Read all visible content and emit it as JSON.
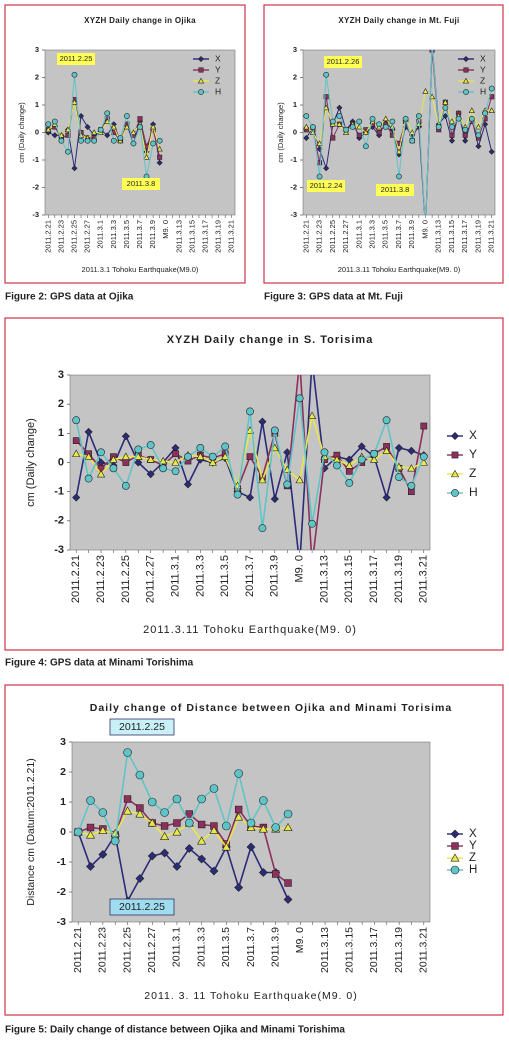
{
  "chart_data": [
    {
      "type": "line",
      "title": "XYZH  Daily change  in  Ojika",
      "caption": "Figure 2: GPS data at Ojika",
      "x_label": "2011.3.1  Tohoku Earthquake(M9.0)",
      "y_label": "cm  (Daily change)",
      "categories": [
        "2011.2.21",
        null,
        "2011.2.23",
        null,
        "2011.2.25",
        null,
        "2011.2.27",
        null,
        "2011.3.1",
        null,
        "2011.3.3",
        null,
        "2011.3.5",
        null,
        "2011.3.7",
        null,
        "2011.3.9",
        null,
        "M9. 0",
        null,
        "2011.3.13",
        null,
        "2011.3.15",
        null,
        "2011.3.17",
        null,
        "2011.3.19",
        null,
        "2011.3.21"
      ],
      "ylim": [
        -3,
        3
      ],
      "yticks": [
        -3,
        -2,
        -1,
        0,
        1,
        2,
        3
      ],
      "legend": "upper right",
      "annotations": [
        "2011.2.25",
        "2011.3.8"
      ],
      "series": [
        {
          "name": "X",
          "color": "#2b2b7a",
          "marker": "diamond",
          "values": [
            0,
            -0.1,
            -0.1,
            0.1,
            -1.3,
            0.6,
            0.2,
            -0.1,
            0.1,
            -0.1,
            0.3,
            -0.3,
            0.3,
            -0.4,
            0.4,
            -0.7,
            0.3,
            -1.1,
            null,
            null,
            null,
            null,
            null,
            null,
            null,
            null,
            null,
            null,
            null
          ]
        },
        {
          "name": "Y",
          "color": "#8e2f5e",
          "marker": "square",
          "values": [
            0.1,
            0.2,
            -0.2,
            -0.1,
            1.2,
            0,
            -0.2,
            -0.2,
            0.1,
            0.5,
            0,
            -0.3,
            0.3,
            -0.1,
            0.5,
            -0.5,
            0.1,
            -0.9,
            null,
            null,
            null,
            null,
            null,
            null,
            null,
            null,
            null,
            null,
            null
          ]
        },
        {
          "name": "Z",
          "color": "#e8e84a",
          "marker": "triangle",
          "values": [
            0.1,
            0.3,
            -0.1,
            0.1,
            1.1,
            -0.1,
            -0.2,
            0,
            0,
            0.4,
            0.2,
            -0.3,
            0.2,
            0,
            0.3,
            -0.9,
            0.2,
            -0.6,
            null,
            null,
            null,
            null,
            null,
            null,
            null,
            null,
            null,
            null,
            null
          ]
        },
        {
          "name": "H",
          "color": "#5fc4c8",
          "marker": "circle",
          "values": [
            0.3,
            0.4,
            -0.3,
            -0.7,
            2.1,
            -0.3,
            -0.3,
            -0.3,
            0.1,
            0.7,
            -0.3,
            -0.2,
            0.6,
            -0.4,
            0.2,
            -1.6,
            -0.4,
            -0.3,
            null,
            null,
            null,
            null,
            null,
            null,
            null,
            null,
            null,
            null,
            null
          ]
        }
      ]
    },
    {
      "type": "line",
      "title": "XYZH  Daily change  in  Mt. Fuji",
      "caption": "Figure 3: GPS data at Mt. Fuji",
      "x_label": "2011.3.11 Tohoku  Earthquake(M9. 0)",
      "y_label": "cm  (Daily change)",
      "categories": [
        "2011.2.21",
        null,
        "2011.2.23",
        null,
        "2011.2.25",
        null,
        "2011.2.27",
        null,
        "2011.3.1",
        null,
        "2011.3.3",
        null,
        "2011.3.5",
        null,
        "2011.3.7",
        null,
        "2011.3.9",
        null,
        "M9. 0",
        null,
        "2011.3.13",
        null,
        "2011.3.15",
        null,
        "2011.3.17",
        null,
        "2011.3.19",
        null,
        "2011.3.21"
      ],
      "ylim": [
        -3,
        3
      ],
      "yticks": [
        -3,
        -2,
        -1,
        0,
        1,
        2,
        3
      ],
      "legend": "upper right",
      "annotations": [
        "2011.2.26",
        "2011.2.24",
        "2011.3.8"
      ],
      "series": [
        {
          "name": "X",
          "color": "#2b2b7a",
          "marker": "diamond",
          "values": [
            -0.2,
            0.2,
            -0.6,
            -1.3,
            0.3,
            0.9,
            0.1,
            0.4,
            -0.2,
            0,
            0.2,
            -0.1,
            0.4,
            0.1,
            -0.8,
            0.2,
            -0.1,
            0.2,
            -3.5,
            3.2,
            0.3,
            0.6,
            -0.3,
            0.7,
            -0.3,
            0.5,
            -0.5,
            0.3,
            -0.7
          ]
        },
        {
          "name": "Y",
          "color": "#8e2f5e",
          "marker": "square",
          "values": [
            0.1,
            0.1,
            -1.1,
            1.3,
            -0.2,
            0.3,
            0.1,
            0.3,
            -0.1,
            0.1,
            0.3,
            0,
            0.3,
            -0.1,
            -0.4,
            0.4,
            -0.3,
            0.4,
            -3.5,
            3,
            0.1,
            1.1,
            -0.1,
            0.7,
            -0.1,
            0.4,
            -0.2,
            0.5,
            1.3
          ]
        },
        {
          "name": "Z",
          "color": "#e8e84a",
          "marker": "triangle",
          "values": [
            0.2,
            0,
            -0.4,
            0.9,
            0.3,
            0.3,
            0,
            0.3,
            0.2,
            0,
            0.4,
            0.2,
            0.5,
            0.2,
            -0.7,
            0.5,
            0,
            0.3,
            1.5,
            1.3,
            0.3,
            1.1,
            0.4,
            0.6,
            0.2,
            0.8,
            0.2,
            0.8,
            0.8
          ]
        },
        {
          "name": "H",
          "color": "#5fc4c8",
          "marker": "circle",
          "values": [
            0.6,
            0.2,
            -1.6,
            2.1,
            0.4,
            0.6,
            0.1,
            0.2,
            0.4,
            -0.5,
            0.5,
            0.3,
            0.2,
            0.4,
            -1.6,
            0.5,
            -0.3,
            0.6,
            -3.5,
            3.2,
            0.2,
            0.9,
            0.2,
            0.5,
            0.1,
            0.5,
            -0.1,
            0.7,
            1.6
          ]
        }
      ]
    },
    {
      "type": "line",
      "title": "XYZH  Daily change  in  S. Torisima",
      "caption": "Figure 4: GPS data at Minami Torishima",
      "x_label": "2011.3.11 Tohoku  Earthquake(M9. 0)",
      "y_label": "cm  (Daily  change)",
      "categories": [
        "2011.2.21",
        null,
        "2011.2.23",
        null,
        "2011.2.25",
        null,
        "2011.2.27",
        null,
        "2011.3.1",
        null,
        "2011.3.3",
        null,
        "2011.3.5",
        null,
        "2011.3.7",
        null,
        "2011.3.9",
        null,
        "M9. 0",
        null,
        "2011.3.13",
        null,
        "2011.3.15",
        null,
        "2011.3.17",
        null,
        "2011.3.19",
        null,
        "2011.3.21"
      ],
      "ylim": [
        -3,
        3
      ],
      "yticks": [
        -3,
        -2,
        -1,
        0,
        1,
        2,
        3
      ],
      "legend": "right",
      "annotations": [],
      "series": [
        {
          "name": "X",
          "color": "#2b2b7a",
          "marker": "diamond",
          "values": [
            -1.2,
            1.05,
            0,
            -0.1,
            0.9,
            0,
            -0.4,
            0,
            0.5,
            -0.75,
            0.1,
            0,
            0.15,
            -1,
            -1.2,
            1.4,
            -1.25,
            0.35,
            -3.5,
            3.5,
            -0.2,
            0.2,
            0.1,
            0.55,
            0.2,
            -1.2,
            0.5,
            0.4,
            0.25
          ]
        },
        {
          "name": "Y",
          "color": "#8e2f5e",
          "marker": "square",
          "values": [
            0.75,
            0.3,
            -0.2,
            0.2,
            0,
            0.25,
            0.1,
            -0.1,
            0.3,
            0.05,
            0.25,
            0.15,
            0.3,
            -0.9,
            0.2,
            -0.5,
            1,
            -0.8,
            3.5,
            -3.5,
            0.1,
            0.25,
            -0.3,
            0,
            0.3,
            0.55,
            -0.2,
            -1,
            1.25
          ]
        },
        {
          "name": "Z",
          "color": "#e8e84a",
          "marker": "triangle",
          "values": [
            0.3,
            0.2,
            -0.4,
            0.1,
            0.2,
            0.2,
            0.1,
            0.05,
            0,
            0.25,
            0.2,
            0,
            0.2,
            -0.8,
            1.1,
            -0.6,
            0.5,
            -0.25,
            -0.6,
            1.6,
            0.2,
            0.1,
            -0.1,
            0.2,
            0.1,
            0.4,
            -0.15,
            -0.2,
            0
          ]
        },
        {
          "name": "H",
          "color": "#5fc4c8",
          "marker": "circle",
          "values": [
            1.45,
            -0.55,
            0.35,
            -0.2,
            -0.8,
            0.45,
            0.6,
            -0.2,
            -0.3,
            0.2,
            0.5,
            0.2,
            0.55,
            -1.1,
            1.75,
            -2.25,
            1.1,
            -0.75,
            2.2,
            -2.1,
            0.35,
            -0.1,
            -0.7,
            0.1,
            0.3,
            1.45,
            -0.5,
            -0.8,
            0.2
          ]
        }
      ]
    },
    {
      "type": "line",
      "title": "Daily change of Distance between Ojika and Minami Torisima",
      "caption": "Figure 5: Daily change of distance between Ojika and Minami Torishima",
      "x_label": "2011. 3. 11  Tohoku  Earthquake(M9. 0)",
      "y_label": "Distance  cm  (Datum:2011.2.21)",
      "categories": [
        "2011.2.21",
        null,
        "2011.2.23",
        null,
        "2011.2.25",
        null,
        "2011.2.27",
        null,
        "2011.3.1",
        null,
        "2011.3.3",
        null,
        "2011.3.5",
        null,
        "2011.3.7",
        null,
        "2011.3.9",
        null,
        "M9. 0",
        null,
        "2011.3.13",
        null,
        "2011.3.15",
        null,
        "2011.3.17",
        null,
        "2011.3.19",
        null,
        "2011.3.21"
      ],
      "ylim": [
        -3,
        3
      ],
      "yticks": [
        -3,
        -2,
        -1,
        0,
        1,
        2,
        3
      ],
      "legend": "right",
      "annotations": [
        "2011.2.25",
        "2011.2.25"
      ],
      "series": [
        {
          "name": "X",
          "color": "#2b2b7a",
          "marker": "diamond",
          "values": [
            0,
            -1.15,
            -0.75,
            -0.1,
            -2.3,
            -1.55,
            -0.8,
            -0.7,
            -1.15,
            -0.55,
            -0.9,
            -1.3,
            -0.5,
            -1.85,
            -0.5,
            -1.35,
            -1.35,
            -2.25,
            null,
            null,
            null,
            null,
            null,
            null,
            null,
            null,
            null,
            null,
            null
          ]
        },
        {
          "name": "Y",
          "color": "#8e2f5e",
          "marker": "square",
          "values": [
            0,
            0.15,
            0.1,
            -0.1,
            1.1,
            0.8,
            0.3,
            0.2,
            0.3,
            0.6,
            0.25,
            0.2,
            -0.4,
            0.75,
            0.2,
            0.15,
            -1.4,
            -1.7,
            null,
            null,
            null,
            null,
            null,
            null,
            null,
            null,
            null,
            null,
            null
          ]
        },
        {
          "name": "Z",
          "color": "#e8e84a",
          "marker": "triangle",
          "values": [
            0,
            -0.1,
            0.05,
            -0.05,
            0.7,
            0.6,
            0.3,
            -0.15,
            0,
            0.3,
            -0.3,
            0.05,
            -0.5,
            0.5,
            0.15,
            0.1,
            0.1,
            0.15,
            null,
            null,
            null,
            null,
            null,
            null,
            null,
            null,
            null,
            null,
            null
          ]
        },
        {
          "name": "H",
          "color": "#5fc4c8",
          "marker": "circle",
          "values": [
            0,
            1.05,
            0.65,
            -0.3,
            2.65,
            1.9,
            1,
            0.65,
            1.1,
            0.3,
            1.1,
            1.45,
            0.2,
            1.95,
            0.3,
            1.05,
            0.15,
            0.6,
            null,
            null,
            null,
            null,
            null,
            null,
            null,
            null,
            null,
            null,
            null
          ]
        }
      ]
    }
  ]
}
